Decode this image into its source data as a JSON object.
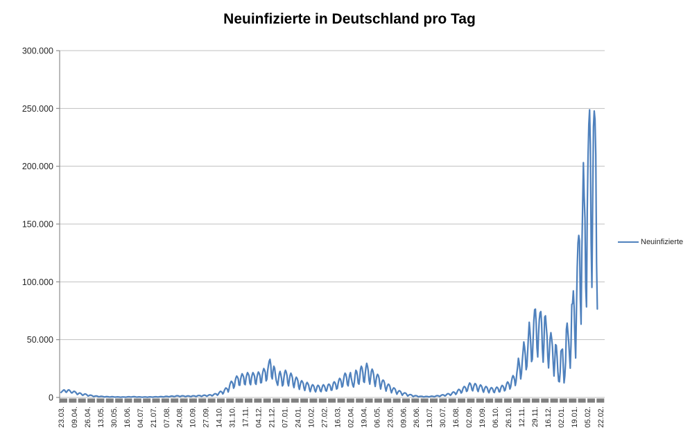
{
  "title": "Neuinfizierte in Deutschland pro Tag",
  "legend": {
    "label": "Neuinfizierte"
  },
  "colors": {
    "series_line": "#4F81BD",
    "gridline": "#BFBFBF",
    "axis_line": "#8C8C8C",
    "tick_strip": "#7F7F7F",
    "label_text": "#262626",
    "title_text": "#000000",
    "background": "#FFFFFF"
  },
  "chart_data": {
    "type": "line",
    "title": "Neuinfizierte in Deutschland pro Tag",
    "xlabel": "",
    "ylabel": "",
    "ylim": [
      0,
      300000
    ],
    "grid": "horizontal-only",
    "legend_position": "right",
    "y_ticks": [
      {
        "value": 0,
        "label": "0"
      },
      {
        "value": 50000,
        "label": "50.000"
      },
      {
        "value": 100000,
        "label": "100.000"
      },
      {
        "value": 150000,
        "label": "150.000"
      },
      {
        "value": 200000,
        "label": "200.000"
      },
      {
        "value": 250000,
        "label": "250.000"
      },
      {
        "value": 300000,
        "label": "300.000"
      }
    ],
    "x_tick_labels": [
      "23.03.",
      "09.04.",
      "26.04.",
      "13.05.",
      "30.05.",
      "16.06.",
      "04.07.",
      "21.07.",
      "07.08.",
      "24.08.",
      "10.09.",
      "27.09.",
      "14.10.",
      "31.10.",
      "17.11.",
      "04.12.",
      "21.12.",
      "07.01.",
      "24.01.",
      "10.02.",
      "27.02.",
      "16.03.",
      "02.04.",
      "19.04.",
      "06.05.",
      "23.05.",
      "09.06.",
      "26.06.",
      "13.07.",
      "30.07.",
      "16.08.",
      "02.09.",
      "19.09.",
      "06.10.",
      "26.10.",
      "12.11.",
      "29.11.",
      "16.12.",
      "02.01.",
      "19.01.",
      "05.02.",
      "22.02."
    ],
    "x_points_per_tick": 17,
    "series": [
      {
        "name": "Neuinfizierte",
        "color": "#4F81BD",
        "values": [
          4300,
          4950,
          5570,
          6250,
          6550,
          6000,
          4750,
          4450,
          5450,
          6300,
          6600,
          6200,
          5350,
          4300,
          3850,
          4300,
          5100,
          5350,
          5000,
          4450,
          3550,
          2550,
          2900,
          3600,
          3900,
          3700,
          3200,
          2450,
          1850,
          2200,
          2800,
          3000,
          2900,
          2500,
          1850,
          1250,
          1500,
          1900,
          2000,
          1900,
          1650,
          1200,
          750,
          950,
          1200,
          1300,
          1300,
          1100,
          800,
          550,
          700,
          900,
          1000,
          950,
          800,
          600,
          400,
          500,
          700,
          750,
          700,
          600,
          450,
          350,
          450,
          600,
          650,
          600,
          500,
          350,
          270,
          350,
          470,
          500,
          460,
          400,
          300,
          220,
          300,
          400,
          420,
          400,
          350,
          260,
          300,
          400,
          520,
          600,
          580,
          500,
          350,
          400,
          520,
          650,
          700,
          660,
          560,
          400,
          270,
          370,
          470,
          500,
          460,
          400,
          300,
          220,
          310,
          410,
          450,
          420,
          360,
          260,
          250,
          350,
          460,
          510,
          470,
          400,
          290,
          320,
          450,
          560,
          610,
          570,
          490,
          360,
          420,
          560,
          700,
          760,
          710,
          630,
          460,
          520,
          710,
          900,
          990,
          920,
          810,
          570,
          630,
          890,
          1110,
          1220,
          1130,
          990,
          710,
          810,
          1110,
          1400,
          1510,
          1410,
          1280,
          900,
          760,
          1090,
          1360,
          1450,
          1360,
          1240,
          860,
          710,
          1010,
          1260,
          1350,
          1270,
          1150,
          810,
          760,
          1090,
          1360,
          1460,
          1360,
          1250,
          860,
          910,
          1300,
          1610,
          1750,
          1650,
          1510,
          1010,
          1010,
          1460,
          1810,
          2000,
          1910,
          1710,
          1160,
          1210,
          1710,
          2110,
          2300,
          2210,
          2010,
          1360,
          1610,
          2410,
          2900,
          3260,
          3110,
          2810,
          1910,
          2510,
          3810,
          4710,
          5310,
          5010,
          4510,
          3010,
          4010,
          6010,
          7310,
          8210,
          7810,
          7010,
          4710,
          7010,
          10510,
          12710,
          14010,
          13310,
          12010,
          8010,
          9510,
          14010,
          17010,
          18510,
          17610,
          16010,
          10710,
          10510,
          15510,
          18510,
          20510,
          19310,
          17510,
          11710,
          11010,
          16310,
          19510,
          21510,
          20310,
          18510,
          12310,
          11010,
          16310,
          19510,
          21510,
          20310,
          18510,
          12310,
          11310,
          16710,
          20010,
          22010,
          20910,
          19010,
          12710,
          12810,
          19010,
          22710,
          25010,
          23710,
          21510,
          14310,
          15810,
          23010,
          27710,
          31310,
          33010,
          28510,
          18010,
          16010,
          23210,
          27010,
          25310,
          20010,
          15010,
          12510,
          10510,
          15510,
          20510,
          22510,
          20010,
          16010,
          10010,
          11010,
          17010,
          21510,
          23510,
          22010,
          19010,
          12510,
          10010,
          15010,
          19010,
          21010,
          19510,
          17010,
          11010,
          8510,
          12510,
          16010,
          17510,
          16510,
          14510,
          9510,
          7010,
          10510,
          13510,
          14510,
          13510,
          12010,
          8010,
          6010,
          9010,
          12010,
          13010,
          12010,
          10510,
          7010,
          5010,
          7510,
          10010,
          11010,
          10510,
          9010,
          6010,
          4810,
          7010,
          9510,
          10510,
          10010,
          8510,
          5710,
          5010,
          7510,
          10010,
          11010,
          10210,
          8810,
          5910,
          5510,
          8010,
          10810,
          11510,
          11010,
          9510,
          6310,
          6310,
          9510,
          12510,
          13510,
          12810,
          11010,
          7310,
          7810,
          11810,
          15010,
          16510,
          15810,
          13510,
          9010,
          9810,
          14810,
          19010,
          21010,
          20010,
          17010,
          11310,
          10010,
          15510,
          19510,
          21510,
          17010,
          13510,
          10510,
          9010,
          13010,
          19510,
          23510,
          22510,
          19010,
          12510,
          11510,
          17010,
          24510,
          27010,
          25510,
          21510,
          13810,
          13010,
          20010,
          26010,
          29510,
          27010,
          23010,
          15010,
          11510,
          17010,
          22510,
          24510,
          23010,
          19510,
          13010,
          9510,
          14510,
          18510,
          20010,
          19010,
          16510,
          11010,
          7310,
          11010,
          14010,
          15010,
          14510,
          12510,
          8310,
          5510,
          8310,
          10510,
          11510,
          11010,
          9510,
          6310,
          4010,
          6010,
          7510,
          8310,
          7810,
          6810,
          4510,
          2810,
          4210,
          5310,
          5810,
          5510,
          4810,
          3210,
          1910,
          2910,
          3610,
          4010,
          3810,
          3310,
          2210,
          1210,
          1810,
          2310,
          2510,
          2410,
          2110,
          1410,
          760,
          1110,
          1410,
          1560,
          1510,
          1310,
          860,
          510,
          760,
          960,
          1010,
          960,
          860,
          560,
          460,
          660,
          810,
          910,
          860,
          760,
          510,
          560,
          810,
          1010,
          1110,
          1010,
          910,
          610,
          760,
          1110,
          1410,
          1560,
          1510,
          1310,
          860,
          1110,
          1710,
          2110,
          2310,
          2210,
          1910,
          1310,
          1610,
          2410,
          3010,
          3310,
          3110,
          2710,
          1810,
          2310,
          3410,
          4310,
          4810,
          4510,
          3910,
          2610,
          3310,
          5010,
          6310,
          7010,
          6610,
          5710,
          3810,
          4510,
          6810,
          8610,
          9510,
          9010,
          7810,
          5210,
          5810,
          8810,
          11010,
          12510,
          11810,
          10010,
          6710,
          5710,
          8610,
          10810,
          12010,
          11410,
          9810,
          6510,
          5110,
          7710,
          9710,
          10810,
          10210,
          8810,
          5910,
          4510,
          6810,
          8610,
          9510,
          9010,
          7810,
          5210,
          4010,
          6110,
          7710,
          8510,
          8110,
          7010,
          4710,
          4210,
          6410,
          8010,
          8910,
          8510,
          7310,
          4910,
          4910,
          7410,
          9410,
          10410,
          9910,
          8510,
          5710,
          6410,
          9610,
          12110,
          13410,
          12710,
          11010,
          7310,
          9010,
          13610,
          17010,
          18910,
          17910,
          15510,
          10310,
          14010,
          21010,
          26510,
          33910,
          30010,
          24010,
          16010,
          21010,
          31510,
          39510,
          48010,
          43510,
          36010,
          24010,
          27010,
          40010,
          53010,
          65010,
          57010,
          46010,
          31010,
          33010,
          50010,
          66910,
          75910,
          76410,
          64010,
          43010,
          35010,
          54010,
          67110,
          73210,
          74310,
          64510,
          42010,
          30510,
          46010,
          69610,
          70610,
          61510,
          53010,
          35510,
          25510,
          38510,
          51210,
          56010,
          51010,
          44010,
          29510,
          18510,
          30510,
          45710,
          44910,
          35410,
          22510,
          14010,
          13510,
          22010,
          40010,
          41210,
          41810,
          26510,
          12610,
          18610,
          30610,
          58910,
          64310,
          56310,
          48010,
          36610,
          25310,
          45610,
          80410,
          81410,
          92210,
          78010,
          52510,
          34110,
          74410,
          112310,
          133510,
          140210,
          135510,
          85410,
          63410,
          126910,
          164010,
          203110,
          174110,
          155110,
          95110,
          78310,
          162610,
          208510,
          236110,
          248810,
          217810,
          133210,
          95210,
          169510,
          234210,
          247810,
          240210,
          209810,
          116910,
          76510
        ]
      }
    ]
  }
}
